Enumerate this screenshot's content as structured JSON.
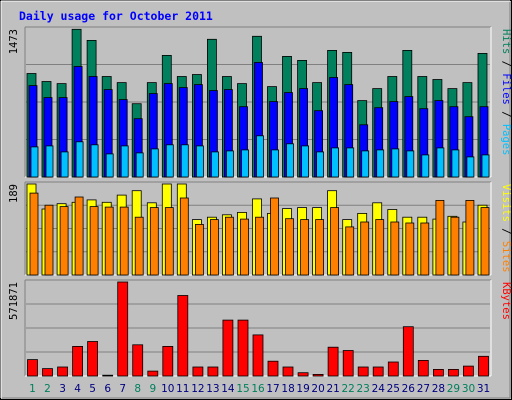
{
  "title": "Daily usage for October 2011",
  "colors": {
    "background": "#C0C0C0",
    "title": "#0000FF",
    "hits": "#00805C",
    "files": "#0000FF",
    "pages": "#00C0FF",
    "visits": "#FFFF00",
    "sites": "#FF8000",
    "kbytes": "#FF0000",
    "separator": "#000000",
    "day_label_default": "#000080",
    "day_label_weekend": "#00805C",
    "gridline": "#808080"
  },
  "chart_data": [
    {
      "type": "bar",
      "name": "hits-files-pages",
      "title": "Daily usage for October 2011",
      "ylabel_parts": [
        "Pages",
        "Files",
        "Hits"
      ],
      "y_max_label": "1473",
      "ylim": [
        0,
        1473
      ],
      "grid": true,
      "categories": [
        "1",
        "2",
        "3",
        "4",
        "5",
        "6",
        "7",
        "8",
        "9",
        "10",
        "11",
        "12",
        "13",
        "14",
        "15",
        "16",
        "17",
        "18",
        "19",
        "20",
        "21",
        "22",
        "23",
        "24",
        "25",
        "26",
        "27",
        "28",
        "29",
        "30",
        "31"
      ],
      "series": [
        {
          "name": "Hits",
          "values": [
            1030,
            950,
            930,
            1470,
            1360,
            1000,
            940,
            730,
            940,
            1210,
            1000,
            1020,
            1370,
            1000,
            930,
            1400,
            900,
            1200,
            1160,
            940,
            1260,
            1240,
            760,
            880,
            1000,
            1260,
            1000,
            970,
            880,
            940,
            1230
          ]
        },
        {
          "name": "Files",
          "values": [
            910,
            790,
            790,
            1100,
            1000,
            870,
            770,
            580,
            830,
            930,
            890,
            920,
            860,
            870,
            700,
            1140,
            750,
            840,
            880,
            660,
            990,
            920,
            520,
            690,
            750,
            800,
            680,
            760,
            700,
            600,
            700
          ]
        },
        {
          "name": "Pages",
          "values": [
            300,
            310,
            250,
            350,
            320,
            230,
            310,
            240,
            280,
            320,
            320,
            310,
            250,
            260,
            270,
            410,
            270,
            330,
            310,
            250,
            290,
            290,
            260,
            270,
            280,
            260,
            220,
            290,
            270,
            200,
            220
          ]
        }
      ]
    },
    {
      "type": "bar",
      "name": "visits-sites",
      "ylabel_parts": [
        "Sites",
        "Visits"
      ],
      "y_max_label": "189",
      "ylim": [
        0,
        189
      ],
      "grid": true,
      "categories": [
        "1",
        "2",
        "3",
        "4",
        "5",
        "6",
        "7",
        "8",
        "9",
        "10",
        "11",
        "12",
        "13",
        "14",
        "15",
        "16",
        "17",
        "18",
        "19",
        "20",
        "21",
        "22",
        "23",
        "24",
        "25",
        "26",
        "27",
        "28",
        "29",
        "30",
        "31"
      ],
      "series": [
        {
          "name": "Visits",
          "values": [
            189,
            137,
            148,
            151,
            156,
            151,
            166,
            175,
            150,
            189,
            189,
            115,
            120,
            125,
            130,
            158,
            128,
            138,
            140,
            140,
            175,
            115,
            128,
            150,
            136,
            120,
            120,
            116,
            122,
            110,
            145
          ]
        },
        {
          "name": "Sites",
          "values": [
            170,
            145,
            142,
            162,
            142,
            141,
            141,
            120,
            140,
            140,
            160,
            105,
            115,
            120,
            116,
            120,
            160,
            117,
            115,
            115,
            140,
            100,
            110,
            115,
            110,
            108,
            108,
            155,
            120,
            155,
            140
          ]
        }
      ]
    },
    {
      "type": "bar",
      "name": "kbytes",
      "ylabel": "KBytes",
      "y_max_label": "571871",
      "ylim": [
        0,
        571871
      ],
      "grid": true,
      "categories": [
        "1",
        "2",
        "3",
        "4",
        "5",
        "6",
        "7",
        "8",
        "9",
        "10",
        "11",
        "12",
        "13",
        "14",
        "15",
        "16",
        "17",
        "18",
        "19",
        "20",
        "21",
        "22",
        "23",
        "24",
        "25",
        "26",
        "27",
        "28",
        "29",
        "30",
        "31"
      ],
      "series": [
        {
          "name": "KBytes",
          "values": [
            100000,
            45000,
            55000,
            180000,
            210000,
            5000,
            580000,
            190000,
            30000,
            180000,
            490000,
            55000,
            55000,
            340000,
            340000,
            250000,
            90000,
            55000,
            20000,
            10000,
            175000,
            155000,
            55000,
            55000,
            85000,
            300000,
            95000,
            40000,
            40000,
            60000,
            120000
          ]
        }
      ]
    }
  ],
  "day_labels": [
    {
      "label": "1",
      "weekend": true
    },
    {
      "label": "2",
      "weekend": true
    },
    {
      "label": "3",
      "weekend": false
    },
    {
      "label": "4",
      "weekend": false
    },
    {
      "label": "5",
      "weekend": false
    },
    {
      "label": "6",
      "weekend": false
    },
    {
      "label": "7",
      "weekend": false
    },
    {
      "label": "8",
      "weekend": true
    },
    {
      "label": "9",
      "weekend": true
    },
    {
      "label": "10",
      "weekend": false
    },
    {
      "label": "11",
      "weekend": false
    },
    {
      "label": "12",
      "weekend": false
    },
    {
      "label": "13",
      "weekend": false
    },
    {
      "label": "14",
      "weekend": false
    },
    {
      "label": "15",
      "weekend": true
    },
    {
      "label": "16",
      "weekend": true
    },
    {
      "label": "17",
      "weekend": false
    },
    {
      "label": "18",
      "weekend": false
    },
    {
      "label": "19",
      "weekend": false
    },
    {
      "label": "20",
      "weekend": false
    },
    {
      "label": "21",
      "weekend": false
    },
    {
      "label": "22",
      "weekend": true
    },
    {
      "label": "23",
      "weekend": true
    },
    {
      "label": "24",
      "weekend": false
    },
    {
      "label": "25",
      "weekend": false
    },
    {
      "label": "26",
      "weekend": false
    },
    {
      "label": "27",
      "weekend": false
    },
    {
      "label": "28",
      "weekend": false
    },
    {
      "label": "29",
      "weekend": true
    },
    {
      "label": "30",
      "weekend": true
    },
    {
      "label": "31",
      "weekend": false
    }
  ]
}
